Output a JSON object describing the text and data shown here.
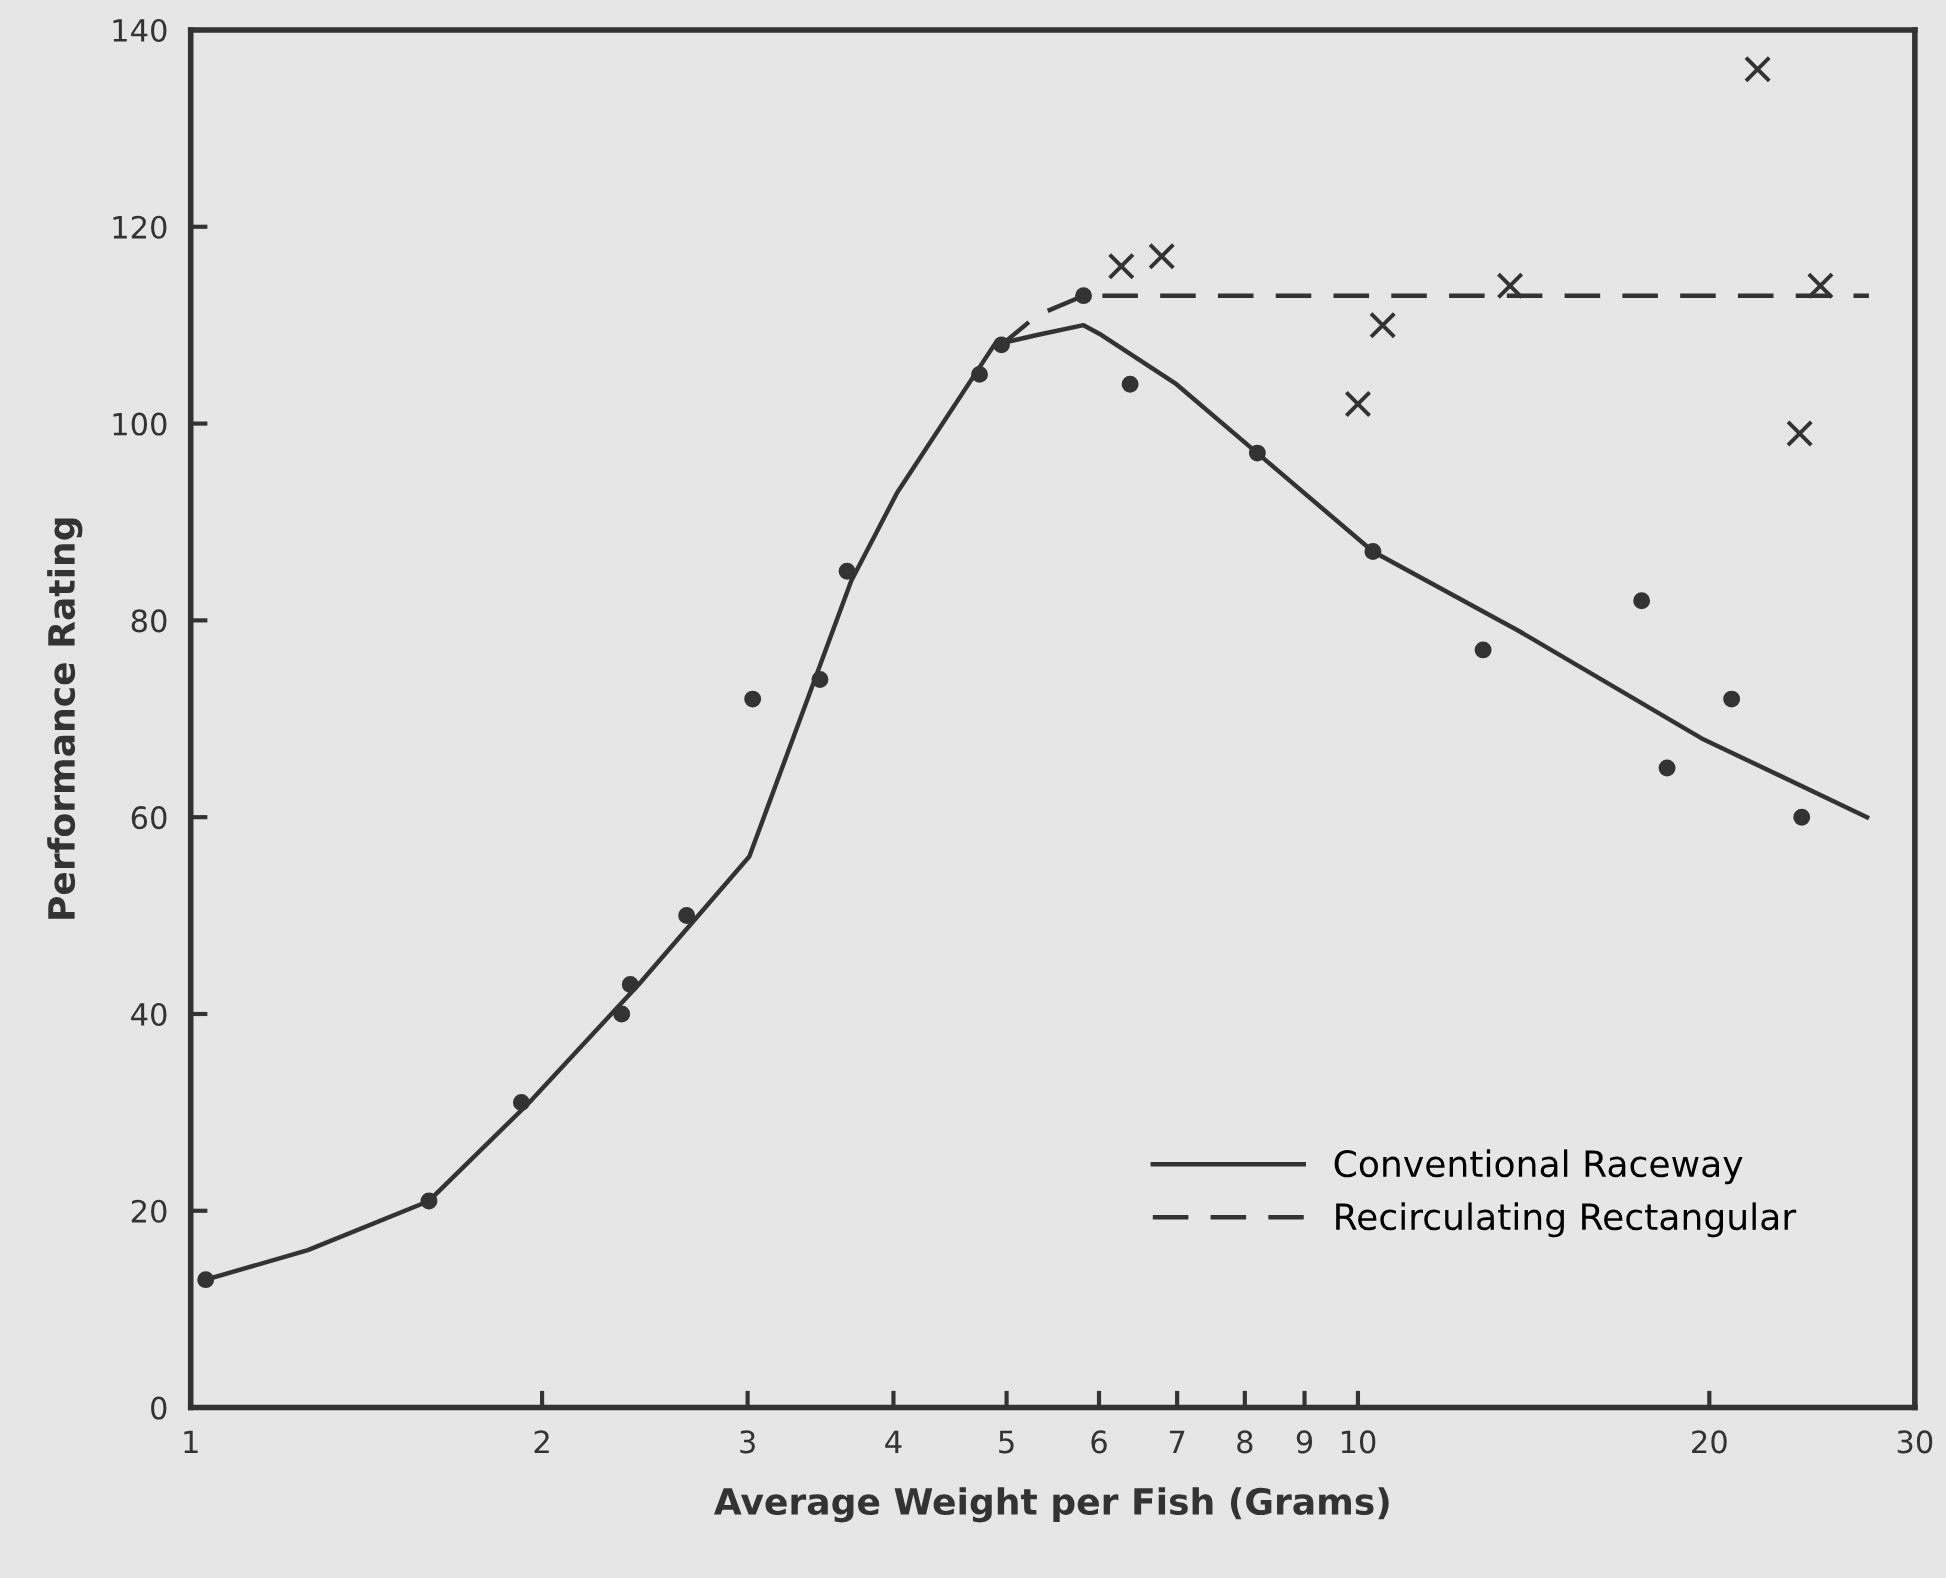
{
  "chart_data": {
    "type": "scatter",
    "xlabel": "Average Weight per Fish (Grams)",
    "ylabel": "Performance Rating",
    "log": "x",
    "xlim": [
      1,
      30
    ],
    "xticks": [
      1,
      2,
      3,
      4,
      5,
      6,
      7,
      8,
      9,
      10,
      20,
      30
    ],
    "ylim": [
      0,
      140
    ],
    "yticks": [
      0,
      20,
      40,
      60,
      80,
      100,
      120,
      140
    ],
    "grid": false,
    "legend": "bottom right",
    "series": [
      {
        "marker": "circle",
        "color": "#333333",
        "x": [
          1.03,
          1.6,
          1.92,
          2.34,
          2.38,
          2.66,
          3.03,
          3.46,
          3.65,
          4.74,
          4.95,
          5.82,
          6.38,
          8.2,
          10.3,
          12.8,
          17.5,
          18.4,
          20.9,
          24.0
        ],
        "values": [
          13,
          21,
          31,
          40,
          43,
          50,
          72,
          74,
          85,
          105,
          108,
          113,
          104,
          97,
          87,
          77,
          82,
          65,
          72,
          60
        ]
      },
      {
        "name": "Conventional Raceway",
        "type": "line",
        "line_style": "solid",
        "marker": "none",
        "color": "#333333",
        "x": [
          1.03,
          1.26,
          1.6,
          1.95,
          2.42,
          3.01,
          3.68,
          4.03,
          4.88,
          5.31,
          5.82,
          6.03,
          6.99,
          8.2,
          10.3,
          13.7,
          19.7,
          27.3
        ],
        "values": [
          13,
          16,
          21,
          31,
          43,
          56,
          84,
          93,
          108,
          109,
          110,
          109,
          104,
          97,
          87,
          79,
          68,
          60
        ]
      },
      {
        "marker": "cross",
        "color": "#333333",
        "x": [
          6.27,
          6.79,
          10.0,
          10.5,
          13.5,
          22.0,
          23.9,
          24.9
        ],
        "values": [
          116,
          117,
          102,
          110,
          114,
          136,
          99,
          114
        ]
      },
      {
        "name": "Recirculating Rectangular",
        "type": "line",
        "line_style": "dashed",
        "marker": "none",
        "color": "#333333",
        "x": [
          4.95,
          5.31,
          5.82,
          6.27,
          27.4
        ],
        "values": [
          108,
          111,
          113,
          113,
          113
        ]
      }
    ]
  }
}
